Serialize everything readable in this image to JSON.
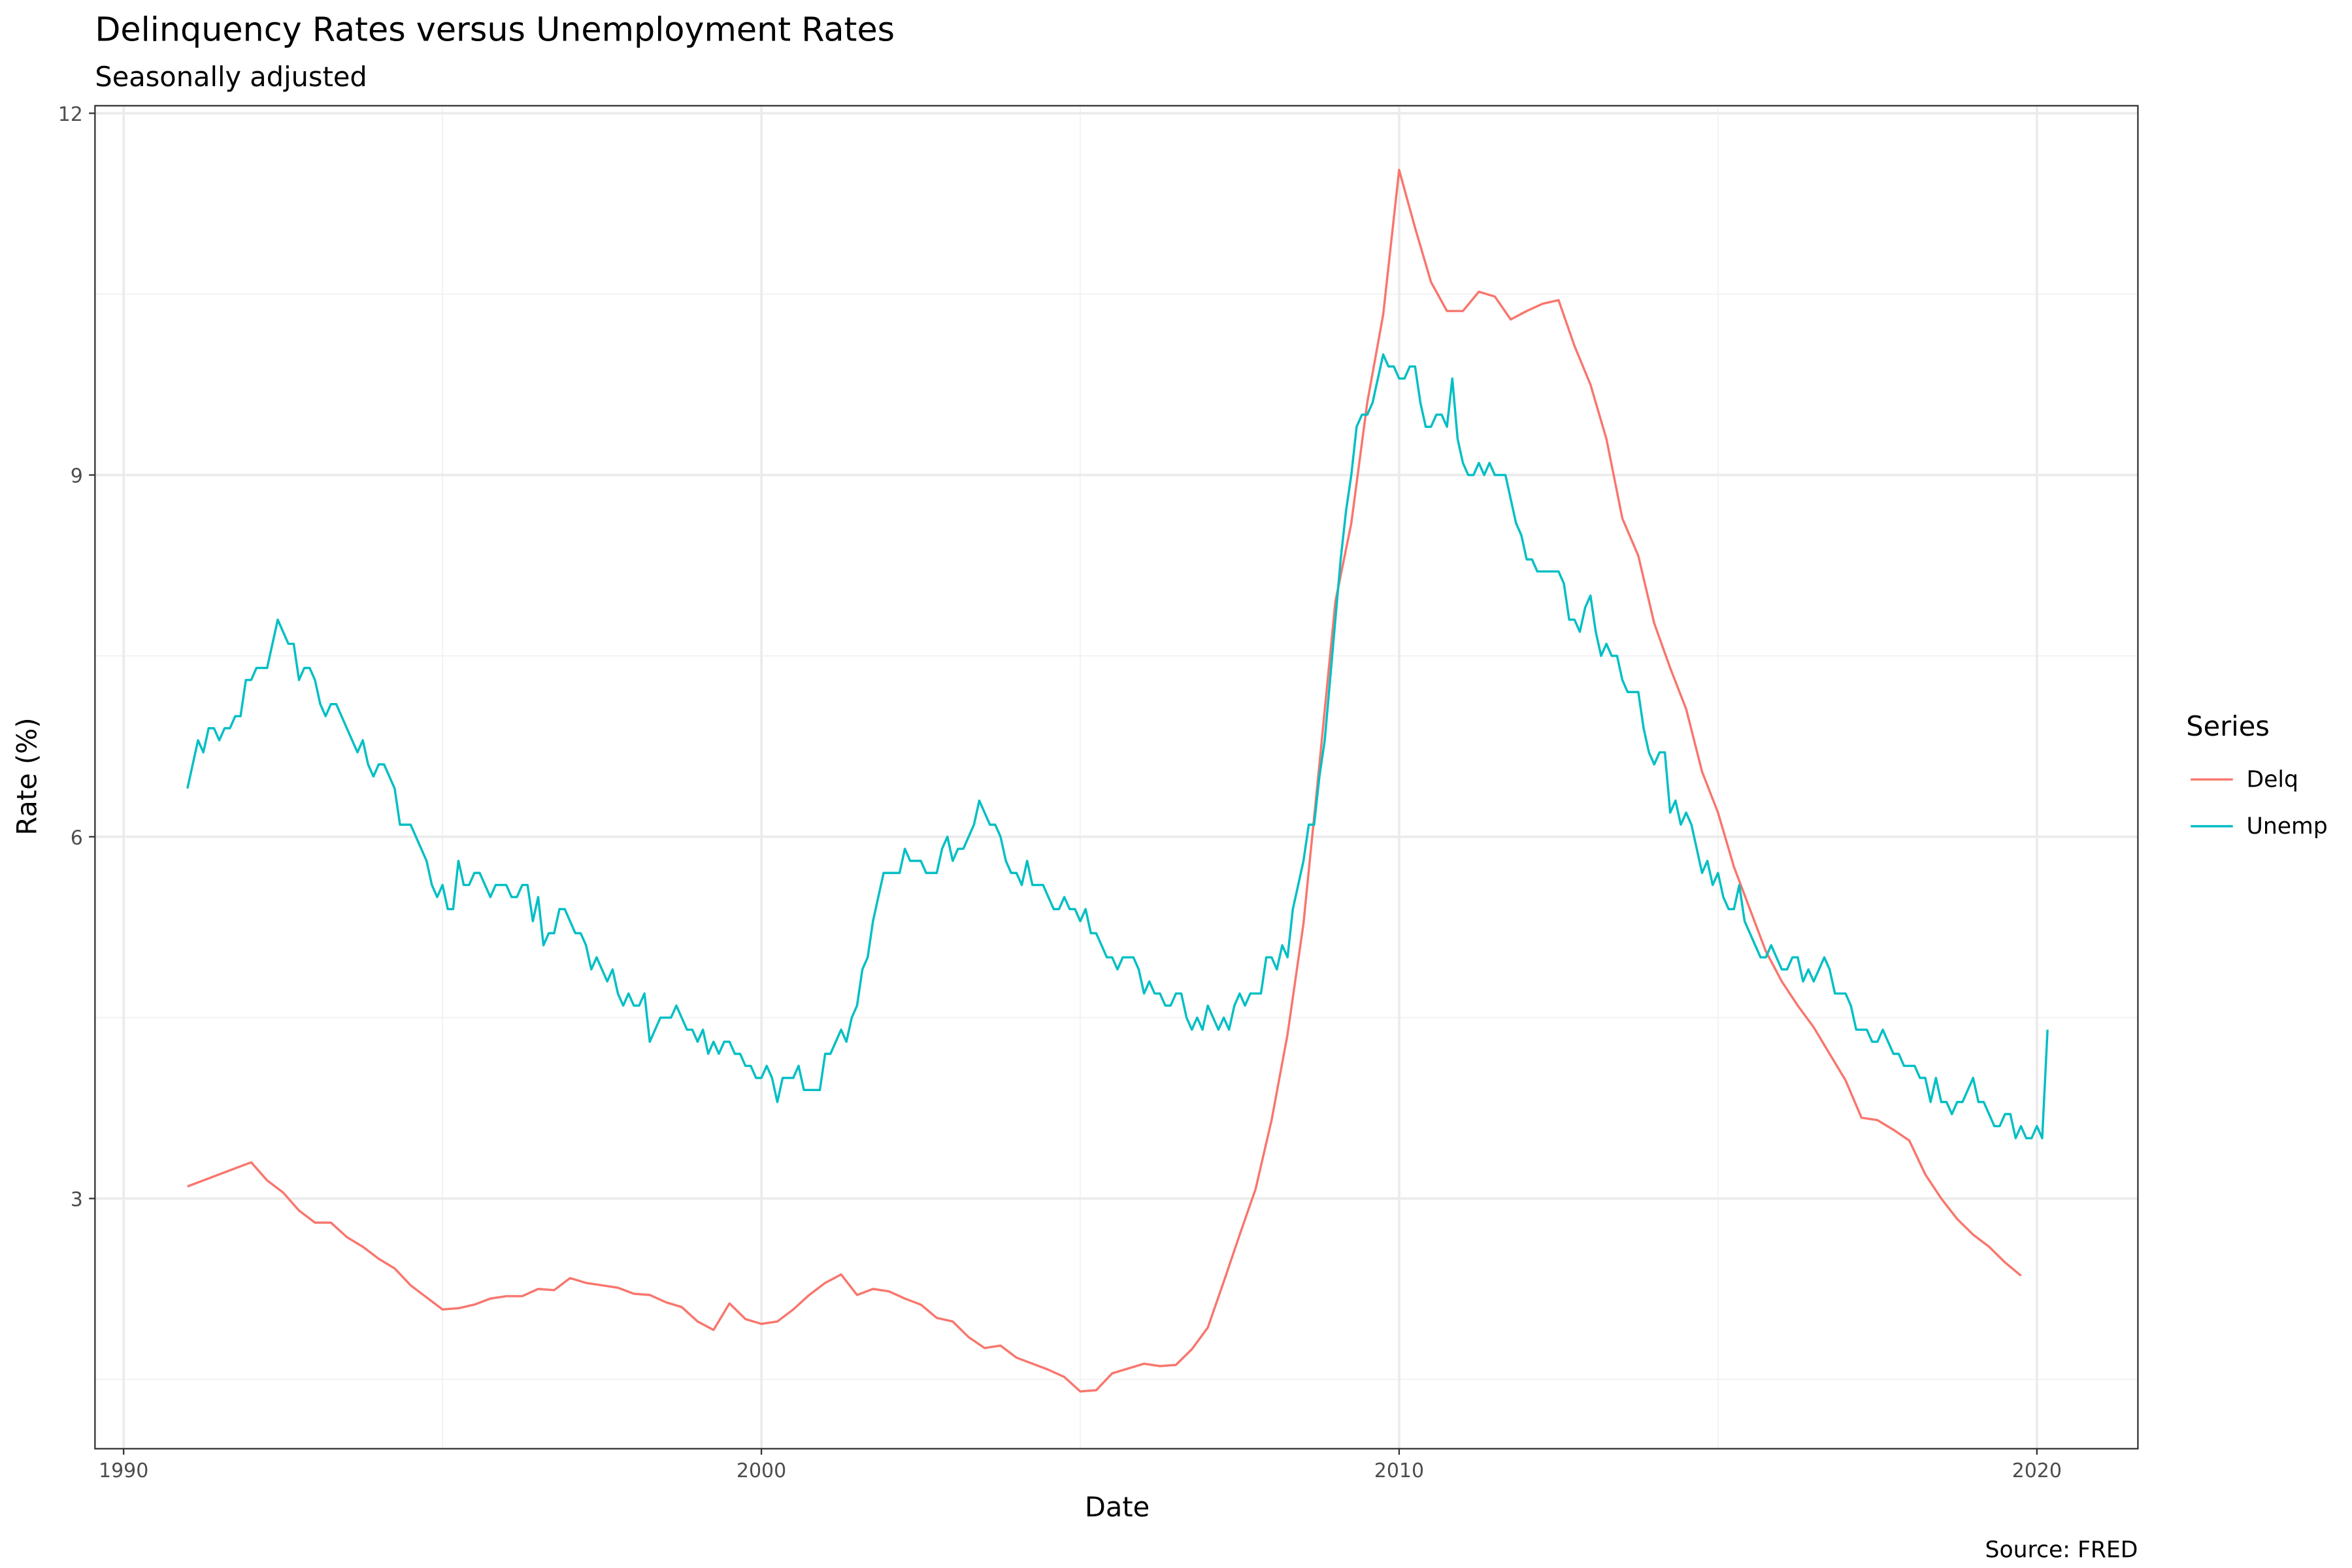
{
  "chart_data": {
    "type": "line",
    "title": "Delinquency Rates versus Unemployment Rates",
    "subtitle": "Seasonally adjusted",
    "caption": "Source: FRED",
    "xlabel": "Date",
    "ylabel": "Rate (%)",
    "xlim": [
      1989.5,
      2021.6
    ],
    "ylim": [
      0.93,
      12.06
    ],
    "x_ticks": [
      "1990",
      "2000",
      "2010",
      "2020"
    ],
    "y_ticks": [
      "3",
      "6",
      "9",
      "12"
    ],
    "grid": true,
    "legend": {
      "title": "Series",
      "position": "right"
    },
    "series": [
      {
        "name": "Delq",
        "color": "#F8766D",
        "frequency": "quarterly",
        "values_by_year": {
          "1991": [
            3.1,
            3.15,
            3.2,
            3.25
          ],
          "1992": [
            3.3,
            3.15,
            3.05,
            2.9
          ],
          "1993": [
            2.8,
            2.8,
            2.68,
            2.6
          ],
          "1994": [
            2.5,
            2.42,
            2.28,
            2.18
          ],
          "1995": [
            2.08,
            2.09,
            2.12,
            2.17
          ],
          "1996": [
            2.19,
            2.19,
            2.25,
            2.24
          ],
          "1997": [
            2.34,
            2.3,
            2.28,
            2.26
          ],
          "1998": [
            2.21,
            2.2,
            2.14,
            2.1
          ],
          "1999": [
            1.98,
            1.91,
            2.13,
            2.0
          ],
          "2000": [
            1.96,
            1.98,
            2.08,
            2.2
          ],
          "2001": [
            2.3,
            2.37,
            2.2,
            2.25
          ],
          "2002": [
            2.23,
            2.17,
            2.12,
            2.01
          ],
          "2003": [
            1.98,
            1.85,
            1.76,
            1.78
          ],
          "2004": [
            1.68,
            1.63,
            1.58,
            1.52
          ],
          "2005": [
            1.4,
            1.41,
            1.55,
            1.59
          ],
          "2006": [
            1.63,
            1.61,
            1.62,
            1.75
          ],
          "2007": [
            1.93,
            2.31,
            2.7,
            3.08
          ],
          "2008": [
            3.65,
            4.36,
            5.28,
            6.6
          ],
          "2009": [
            7.95,
            8.6,
            9.6,
            10.33
          ],
          "2010": [
            11.53,
            11.05,
            10.6,
            10.36
          ],
          "2011": [
            10.36,
            10.52,
            10.48,
            10.29
          ],
          "2012": [
            10.36,
            10.42,
            10.45,
            10.07
          ],
          "2013": [
            9.75,
            9.3,
            8.64,
            8.33
          ],
          "2014": [
            7.77,
            7.4,
            7.06,
            6.54
          ],
          "2015": [
            6.2,
            5.75,
            5.4,
            5.05
          ],
          "2016": [
            4.8,
            4.6,
            4.42,
            4.2
          ],
          "2017": [
            3.98,
            3.67,
            3.65,
            3.57
          ],
          "2018": [
            3.48,
            3.2,
            3.0,
            2.83
          ],
          "2019": [
            2.7,
            2.6,
            2.47,
            2.36
          ]
        }
      },
      {
        "name": "Unemp",
        "color": "#00BFC4",
        "frequency": "monthly",
        "values_by_year": {
          "1991": [
            6.4,
            6.6,
            6.8,
            6.7,
            6.9,
            6.9,
            6.8,
            6.9,
            6.9,
            7.0,
            7.0,
            7.3
          ],
          "1992": [
            7.3,
            7.4,
            7.4,
            7.4,
            7.6,
            7.8,
            7.7,
            7.6,
            7.6,
            7.3,
            7.4,
            7.4
          ],
          "1993": [
            7.3,
            7.1,
            7.0,
            7.1,
            7.1,
            7.0,
            6.9,
            6.8,
            6.7,
            6.8,
            6.6,
            6.5
          ],
          "1994": [
            6.6,
            6.6,
            6.5,
            6.4,
            6.1,
            6.1,
            6.1,
            6.0,
            5.9,
            5.8,
            5.6,
            5.5
          ],
          "1995": [
            5.6,
            5.4,
            5.4,
            5.8,
            5.6,
            5.6,
            5.7,
            5.7,
            5.6,
            5.5,
            5.6,
            5.6
          ],
          "1996": [
            5.6,
            5.5,
            5.5,
            5.6,
            5.6,
            5.3,
            5.5,
            5.1,
            5.2,
            5.2,
            5.4,
            5.4
          ],
          "1997": [
            5.3,
            5.2,
            5.2,
            5.1,
            4.9,
            5.0,
            4.9,
            4.8,
            4.9,
            4.7,
            4.6,
            4.7
          ],
          "1998": [
            4.6,
            4.6,
            4.7,
            4.3,
            4.4,
            4.5,
            4.5,
            4.5,
            4.6,
            4.5,
            4.4,
            4.4
          ],
          "1999": [
            4.3,
            4.4,
            4.2,
            4.3,
            4.2,
            4.3,
            4.3,
            4.2,
            4.2,
            4.1,
            4.1,
            4.0
          ],
          "2000": [
            4.0,
            4.1,
            4.0,
            3.8,
            4.0,
            4.0,
            4.0,
            4.1,
            3.9,
            3.9,
            3.9,
            3.9
          ],
          "2001": [
            4.2,
            4.2,
            4.3,
            4.4,
            4.3,
            4.5,
            4.6,
            4.9,
            5.0,
            5.3,
            5.5,
            5.7
          ],
          "2002": [
            5.7,
            5.7,
            5.7,
            5.9,
            5.8,
            5.8,
            5.8,
            5.7,
            5.7,
            5.7,
            5.9,
            6.0
          ],
          "2003": [
            5.8,
            5.9,
            5.9,
            6.0,
            6.1,
            6.3,
            6.2,
            6.1,
            6.1,
            6.0,
            5.8,
            5.7
          ],
          "2004": [
            5.7,
            5.6,
            5.8,
            5.6,
            5.6,
            5.6,
            5.5,
            5.4,
            5.4,
            5.5,
            5.4,
            5.4
          ],
          "2005": [
            5.3,
            5.4,
            5.2,
            5.2,
            5.1,
            5.0,
            5.0,
            4.9,
            5.0,
            5.0,
            5.0,
            4.9
          ],
          "2006": [
            4.7,
            4.8,
            4.7,
            4.7,
            4.6,
            4.6,
            4.7,
            4.7,
            4.5,
            4.4,
            4.5,
            4.4
          ],
          "2007": [
            4.6,
            4.5,
            4.4,
            4.5,
            4.4,
            4.6,
            4.7,
            4.6,
            4.7,
            4.7,
            4.7,
            5.0
          ],
          "2008": [
            5.0,
            4.9,
            5.1,
            5.0,
            5.4,
            5.6,
            5.8,
            6.1,
            6.1,
            6.5,
            6.8,
            7.3
          ],
          "2009": [
            7.8,
            8.3,
            8.7,
            9.0,
            9.4,
            9.5,
            9.5,
            9.6,
            9.8,
            10.0,
            9.9,
            9.9
          ],
          "2010": [
            9.8,
            9.8,
            9.9,
            9.9,
            9.6,
            9.4,
            9.4,
            9.5,
            9.5,
            9.4,
            9.8,
            9.3
          ],
          "2011": [
            9.1,
            9.0,
            9.0,
            9.1,
            9.0,
            9.1,
            9.0,
            9.0,
            9.0,
            8.8,
            8.6,
            8.5
          ],
          "2012": [
            8.3,
            8.3,
            8.2,
            8.2,
            8.2,
            8.2,
            8.2,
            8.1,
            7.8,
            7.8,
            7.7,
            7.9
          ],
          "2013": [
            8.0,
            7.7,
            7.5,
            7.6,
            7.5,
            7.5,
            7.3,
            7.2,
            7.2,
            7.2,
            6.9,
            6.7
          ],
          "2014": [
            6.6,
            6.7,
            6.7,
            6.2,
            6.3,
            6.1,
            6.2,
            6.1,
            5.9,
            5.7,
            5.8,
            5.6
          ],
          "2015": [
            5.7,
            5.5,
            5.4,
            5.4,
            5.6,
            5.3,
            5.2,
            5.1,
            5.0,
            5.0,
            5.1,
            5.0
          ],
          "2016": [
            4.9,
            4.9,
            5.0,
            5.0,
            4.8,
            4.9,
            4.8,
            4.9,
            5.0,
            4.9,
            4.7,
            4.7
          ],
          "2017": [
            4.7,
            4.6,
            4.4,
            4.4,
            4.4,
            4.3,
            4.3,
            4.4,
            4.3,
            4.2,
            4.2,
            4.1
          ],
          "2018": [
            4.1,
            4.1,
            4.0,
            4.0,
            3.8,
            4.0,
            3.8,
            3.8,
            3.7,
            3.8,
            3.8,
            3.9
          ],
          "2019": [
            4.0,
            3.8,
            3.8,
            3.7,
            3.6,
            3.6,
            3.7,
            3.7,
            3.5,
            3.6,
            3.5,
            3.5
          ],
          "2020": [
            3.6,
            3.5,
            4.4
          ]
        }
      }
    ]
  }
}
